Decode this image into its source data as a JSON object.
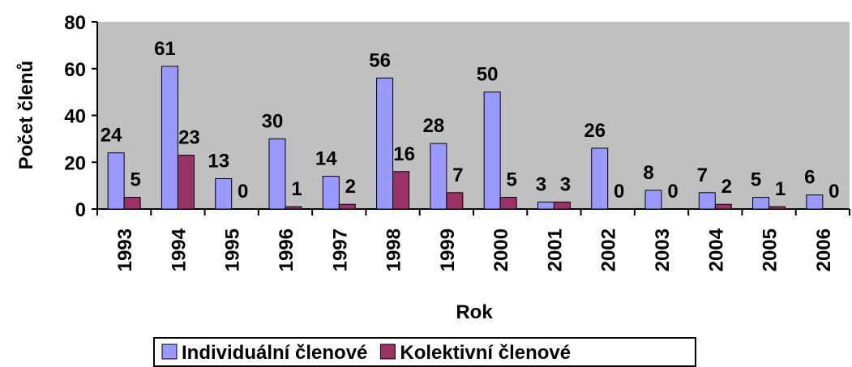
{
  "chart_data": {
    "type": "bar",
    "x_label": "Rok",
    "y_label": "Počet členů",
    "categories": [
      "1993",
      "1994",
      "1995",
      "1996",
      "1997",
      "1998",
      "1999",
      "2000",
      "2001",
      "2002",
      "2003",
      "2004",
      "2005",
      "2006"
    ],
    "series": [
      {
        "name": "Individuální členové",
        "color": "#9999ff",
        "values": [
          24,
          61,
          13,
          30,
          14,
          56,
          28,
          50,
          3,
          26,
          8,
          7,
          5,
          6
        ]
      },
      {
        "name": "Kolektivní členové",
        "color": "#993366",
        "values": [
          5,
          23,
          0,
          1,
          2,
          16,
          7,
          5,
          3,
          0,
          0,
          2,
          1,
          0
        ]
      }
    ],
    "ylim": [
      0,
      80
    ],
    "yticks": [
      0,
      20,
      40,
      60,
      80
    ],
    "grid": false,
    "legend": "bottom",
    "background": "#c0c0c0"
  }
}
